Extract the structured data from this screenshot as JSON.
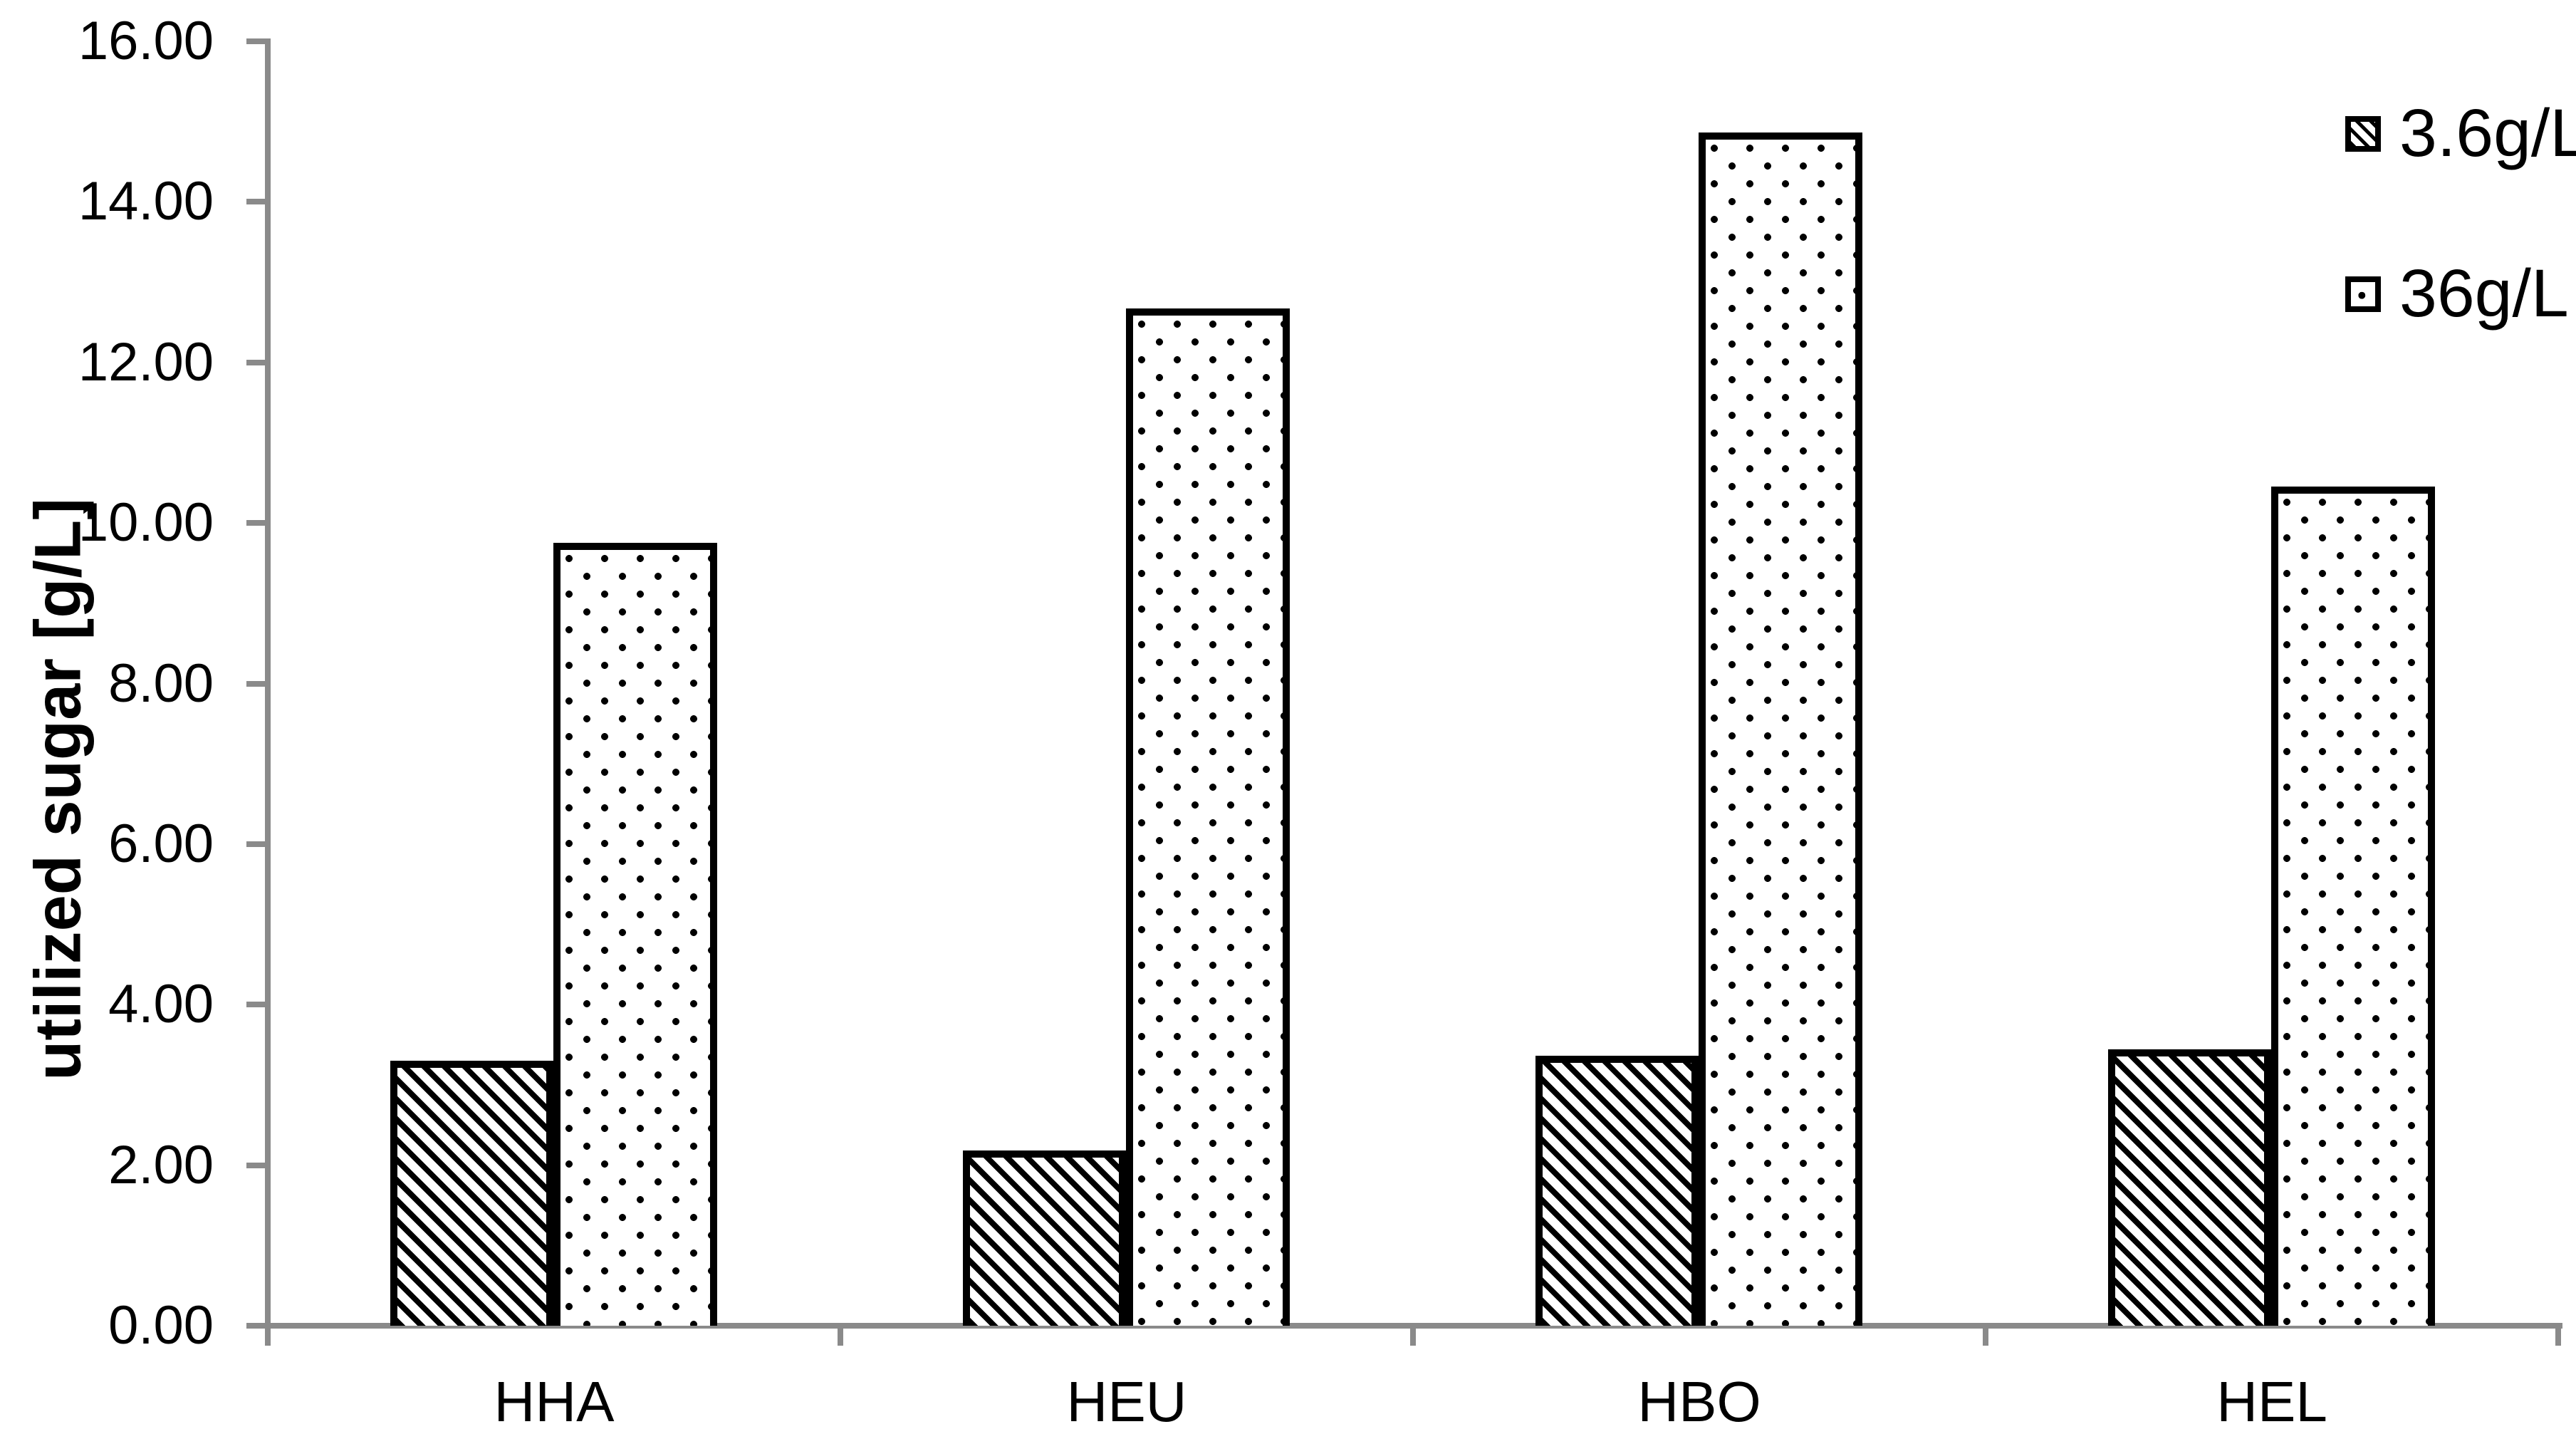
{
  "chart_data": {
    "type": "bar",
    "title": "",
    "xlabel": "",
    "ylabel": "utilized sugar [g/L]",
    "categories": [
      "HHA",
      "HEU",
      "HBO",
      "HEL"
    ],
    "series": [
      {
        "name": "3.6g/L",
        "pattern": "diagonal-hatch",
        "values": [
          3.3,
          2.18,
          3.36,
          3.44
        ]
      },
      {
        "name": "36g/L",
        "pattern": "dots",
        "values": [
          9.75,
          12.67,
          14.86,
          10.45
        ]
      }
    ],
    "ylim": [
      0,
      16
    ],
    "ytick_step": 2,
    "ytick_labels": [
      "0.00",
      "2.00",
      "4.00",
      "6.00",
      "8.00",
      "10.00",
      "12.00",
      "14.00",
      "16.00"
    ],
    "grid": false,
    "legend_position": "top-right",
    "axis_color": "#8a8a8a",
    "bar_outline_color": "#000000",
    "text_color": "#000000",
    "background_color": "#ffffff"
  }
}
